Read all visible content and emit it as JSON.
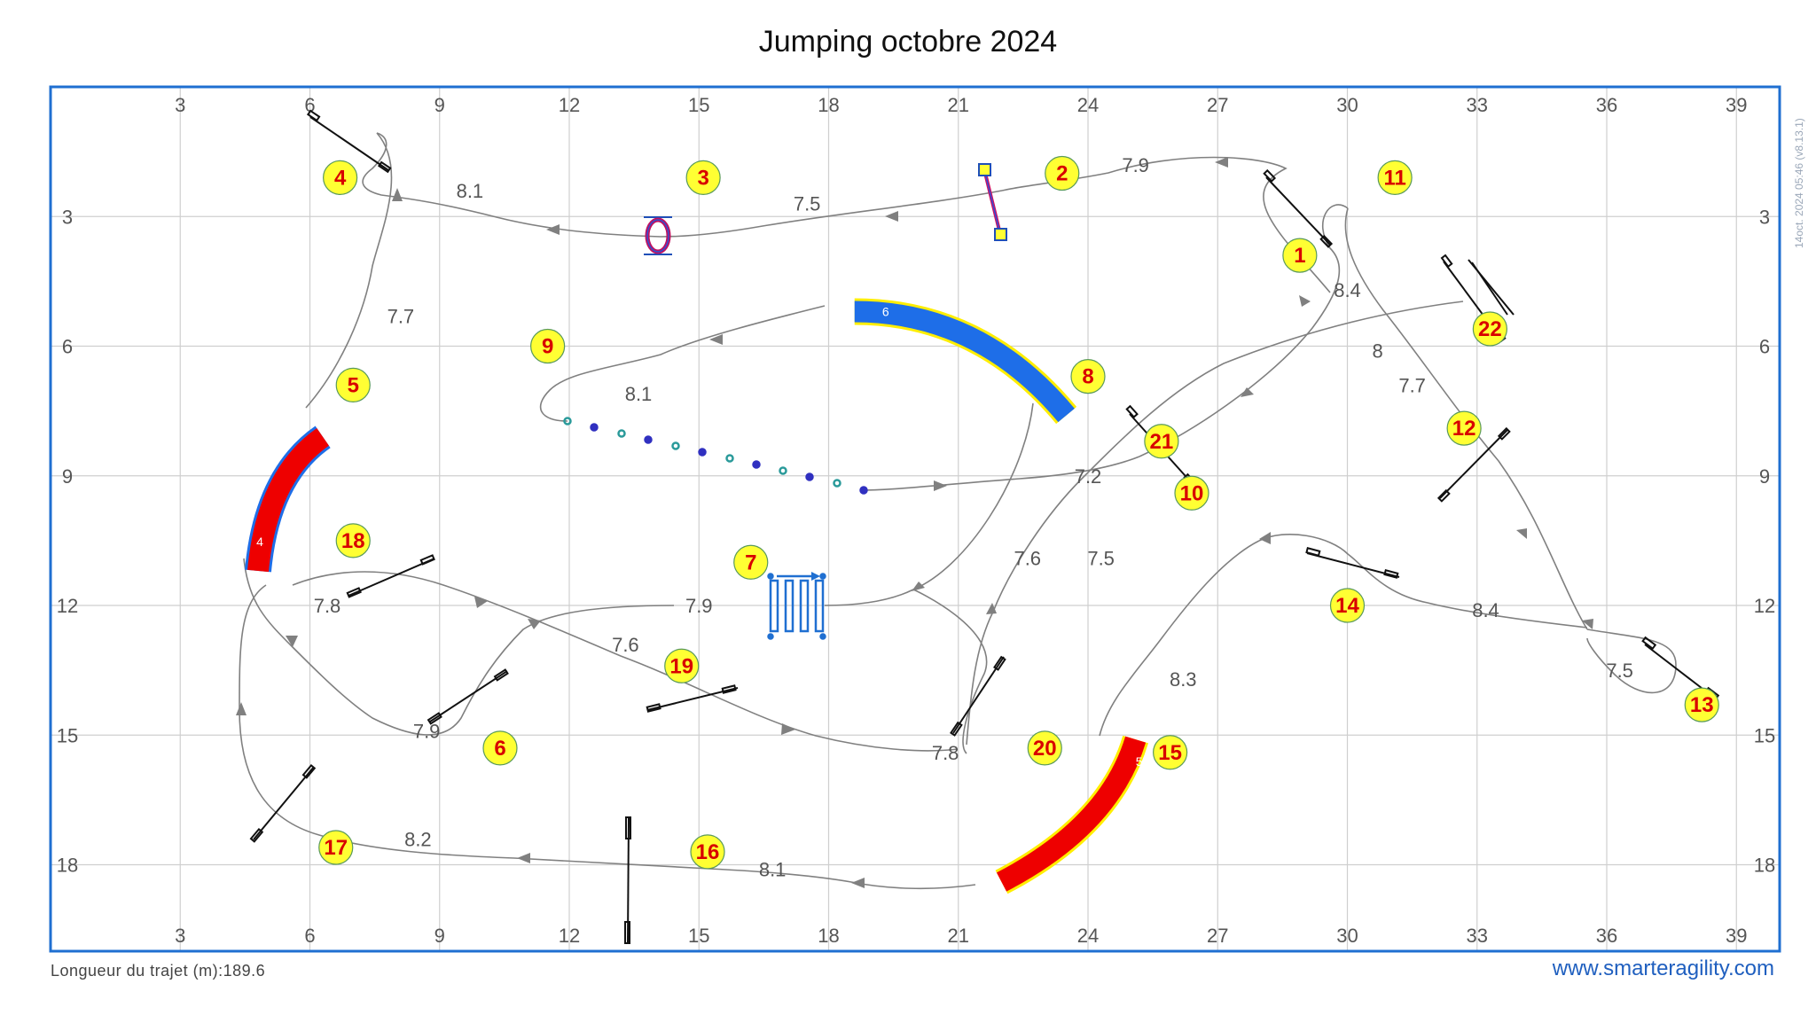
{
  "title": "Jumping octobre 2024",
  "footer": {
    "path_length": "Longueur du trajet (m):189.6",
    "site": "www.smarteragility.com",
    "version": "14oct. 2024 05:46 (v8.13.1)"
  },
  "axes": {
    "x_range": [
      0,
      40
    ],
    "y_range": [
      0,
      20
    ],
    "x_ticks": [
      "3",
      "6",
      "9",
      "12",
      "15",
      "18",
      "21",
      "24",
      "27",
      "30",
      "33",
      "36",
      "39"
    ],
    "y_ticks": [
      "3",
      "6",
      "9",
      "12",
      "15",
      "18"
    ]
  },
  "colors": {
    "frame": "#1f6fd1",
    "grid": "#cfcfcf",
    "path": "#808080",
    "number_fill": "#ffff33",
    "number_text": "#d80000",
    "tunnel_red": "#ee0000",
    "tunnel_blue": "#1e6ee8",
    "tunnel_edge": "#ffee00",
    "jump": "#111111"
  },
  "chart_data": {
    "type": "course_map",
    "units": "m",
    "numbers": [
      {
        "label": "1",
        "x": 28.9,
        "y": 3.9
      },
      {
        "label": "2",
        "x": 23.4,
        "y": 2.0
      },
      {
        "label": "3",
        "x": 15.1,
        "y": 2.1
      },
      {
        "label": "4",
        "x": 6.7,
        "y": 2.1
      },
      {
        "label": "5",
        "x": 7.0,
        "y": 6.9
      },
      {
        "label": "6",
        "x": 10.4,
        "y": 15.3
      },
      {
        "label": "7",
        "x": 16.2,
        "y": 11.0
      },
      {
        "label": "8",
        "x": 24.0,
        "y": 6.7
      },
      {
        "label": "9",
        "x": 11.5,
        "y": 6.0
      },
      {
        "label": "10",
        "x": 26.4,
        "y": 9.4
      },
      {
        "label": "11",
        "x": 31.1,
        "y": 2.1
      },
      {
        "label": "12",
        "x": 32.7,
        "y": 7.9
      },
      {
        "label": "13",
        "x": 38.2,
        "y": 14.3
      },
      {
        "label": "14",
        "x": 30.0,
        "y": 12.0
      },
      {
        "label": "15",
        "x": 25.9,
        "y": 15.4
      },
      {
        "label": "16",
        "x": 15.2,
        "y": 17.7
      },
      {
        "label": "17",
        "x": 6.6,
        "y": 17.6
      },
      {
        "label": "18",
        "x": 7.0,
        "y": 10.5
      },
      {
        "label": "19",
        "x": 14.6,
        "y": 13.4
      },
      {
        "label": "20",
        "x": 23.0,
        "y": 15.3
      },
      {
        "label": "21",
        "x": 25.7,
        "y": 8.2
      },
      {
        "label": "22",
        "x": 33.3,
        "y": 5.6
      }
    ],
    "tunnels": [
      {
        "label": "4",
        "color": "red",
        "points": [
          [
            6.3,
            8.1
          ],
          [
            5.0,
            9.0
          ],
          [
            4.8,
            11.2
          ]
        ]
      },
      {
        "label": "6",
        "color": "blue",
        "points": [
          [
            18.6,
            5.2
          ],
          [
            21.5,
            5.2
          ],
          [
            23.5,
            7.6
          ]
        ]
      },
      {
        "label": "5",
        "color": "red",
        "points": [
          [
            25.1,
            15.1
          ],
          [
            24.5,
            17.1
          ],
          [
            22.0,
            18.4
          ]
        ]
      }
    ],
    "distances": [
      {
        "label": "7.9",
        "x": 25.1,
        "y": 1.8
      },
      {
        "label": "7.5",
        "x": 17.5,
        "y": 2.7
      },
      {
        "label": "8.1",
        "x": 9.7,
        "y": 2.4
      },
      {
        "label": "7.7",
        "x": 8.1,
        "y": 5.3
      },
      {
        "label": "8.1",
        "x": 13.6,
        "y": 7.1
      },
      {
        "label": "7.2",
        "x": 24.0,
        "y": 9.0
      },
      {
        "label": "8.4",
        "x": 30.0,
        "y": 4.7
      },
      {
        "label": "8",
        "x": 30.7,
        "y": 6.1
      },
      {
        "label": "7.7",
        "x": 31.5,
        "y": 6.9
      },
      {
        "label": "7.6",
        "x": 22.6,
        "y": 10.9
      },
      {
        "label": "7.5",
        "x": 24.3,
        "y": 10.9
      },
      {
        "label": "7.8",
        "x": 6.4,
        "y": 12.0
      },
      {
        "label": "7.9",
        "x": 15.0,
        "y": 12.0
      },
      {
        "label": "7.6",
        "x": 13.3,
        "y": 12.9
      },
      {
        "label": "7.9",
        "x": 8.7,
        "y": 14.9
      },
      {
        "label": "8.3",
        "x": 26.2,
        "y": 13.7
      },
      {
        "label": "8.4",
        "x": 33.2,
        "y": 12.1
      },
      {
        "label": "7.5",
        "x": 36.3,
        "y": 13.5
      },
      {
        "label": "7.8",
        "x": 20.7,
        "y": 15.4
      },
      {
        "label": "8.2",
        "x": 8.5,
        "y": 17.4
      },
      {
        "label": "8.1",
        "x": 16.7,
        "y": 18.1
      }
    ]
  }
}
